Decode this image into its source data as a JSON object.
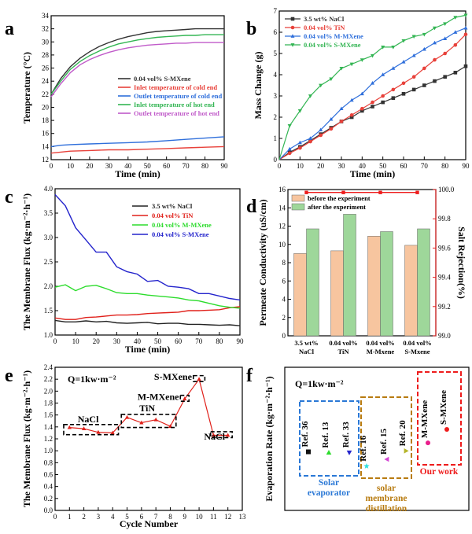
{
  "chart_data": [
    {
      "panel": "a",
      "type": "line",
      "xlabel": "Time (min)",
      "ylabel": "Temperature (°C)",
      "xlim": [
        0,
        90
      ],
      "ylim": [
        12,
        34
      ],
      "xticks": [
        0,
        10,
        20,
        30,
        40,
        50,
        60,
        70,
        80,
        90
      ],
      "yticks": [
        12,
        14,
        16,
        18,
        20,
        22,
        24,
        26,
        28,
        30,
        32,
        34
      ],
      "legend": "center-right",
      "series": [
        {
          "name": "0.04 vol% S-MXene",
          "color": "#333333",
          "x": [
            0,
            5,
            10,
            15,
            20,
            25,
            30,
            35,
            40,
            45,
            50,
            55,
            60,
            65,
            70,
            75,
            80,
            85,
            90
          ],
          "y": [
            22.0,
            24.4,
            26.2,
            27.5,
            28.5,
            29.3,
            29.9,
            30.4,
            30.8,
            31.1,
            31.4,
            31.6,
            31.7,
            31.8,
            31.9,
            32.0,
            32.0,
            32.0,
            32.0
          ]
        },
        {
          "name": "Inlet temperature of cold end",
          "color": "#e8413a",
          "x": [
            0,
            10,
            20,
            30,
            40,
            50,
            60,
            70,
            80,
            90
          ],
          "y": [
            13.0,
            13.3,
            13.4,
            13.5,
            13.5,
            13.6,
            13.7,
            13.8,
            13.9,
            14.0
          ]
        },
        {
          "name": "Outlet temperature of cold end",
          "color": "#2f6fdb",
          "x": [
            0,
            5,
            10,
            20,
            30,
            40,
            50,
            60,
            70,
            80,
            90
          ],
          "y": [
            14.0,
            14.2,
            14.3,
            14.4,
            14.5,
            14.6,
            14.7,
            14.9,
            15.1,
            15.3,
            15.5
          ]
        },
        {
          "name": "Inlet temperature of hot end",
          "color": "#33b553",
          "x": [
            0,
            5,
            10,
            15,
            20,
            25,
            30,
            35,
            40,
            45,
            50,
            55,
            60,
            65,
            70,
            75,
            80,
            85,
            90
          ],
          "y": [
            22.0,
            24.0,
            25.8,
            27.0,
            27.9,
            28.6,
            29.2,
            29.7,
            30.0,
            30.3,
            30.5,
            30.7,
            30.8,
            30.9,
            31.0,
            31.0,
            31.1,
            31.1,
            31.1
          ]
        },
        {
          "name": "Outlet temperature of hot end",
          "color": "#c05ac9",
          "x": [
            0,
            5,
            10,
            15,
            20,
            25,
            30,
            35,
            40,
            45,
            50,
            55,
            60,
            65,
            70,
            75,
            80,
            85,
            90
          ],
          "y": [
            21.6,
            23.6,
            25.3,
            26.5,
            27.3,
            27.9,
            28.4,
            28.8,
            29.1,
            29.3,
            29.5,
            29.6,
            29.7,
            29.8,
            29.8,
            29.9,
            29.9,
            29.9,
            29.9
          ]
        }
      ]
    },
    {
      "panel": "b",
      "type": "line",
      "xlabel": "Time (min)",
      "ylabel": "Mass Change (g)",
      "xlim": [
        0,
        90
      ],
      "ylim": [
        0,
        7
      ],
      "xticks": [
        0,
        10,
        20,
        30,
        40,
        50,
        60,
        70,
        80,
        90
      ],
      "yticks": [
        0,
        1,
        2,
        3,
        4,
        5,
        6,
        7
      ],
      "legend": "top-left",
      "series": [
        {
          "name": "3.5 wt%   NaCl",
          "color": "#333333",
          "marker": "square",
          "x": [
            0,
            5,
            10,
            15,
            20,
            25,
            30,
            35,
            40,
            45,
            50,
            55,
            60,
            65,
            70,
            75,
            80,
            85,
            90
          ],
          "y": [
            0,
            0.35,
            0.6,
            0.9,
            1.2,
            1.5,
            1.8,
            2.0,
            2.3,
            2.5,
            2.7,
            2.9,
            3.1,
            3.3,
            3.5,
            3.7,
            3.9,
            4.1,
            4.4
          ]
        },
        {
          "name": "0.04 vol% TiN",
          "color": "#e8413a",
          "marker": "circle",
          "x": [
            0,
            5,
            10,
            15,
            20,
            25,
            30,
            35,
            40,
            45,
            50,
            55,
            60,
            65,
            70,
            75,
            80,
            85,
            90
          ],
          "y": [
            0,
            0.3,
            0.55,
            0.85,
            1.15,
            1.45,
            1.8,
            2.1,
            2.4,
            2.7,
            3.0,
            3.3,
            3.6,
            3.9,
            4.3,
            4.7,
            5.0,
            5.4,
            5.9
          ]
        },
        {
          "name": "0.04 vol% M-MXene",
          "color": "#2f6fdb",
          "marker": "triangle-up",
          "x": [
            0,
            5,
            10,
            15,
            20,
            25,
            30,
            35,
            40,
            45,
            50,
            55,
            60,
            65,
            70,
            75,
            80,
            85,
            90
          ],
          "y": [
            0,
            0.5,
            0.8,
            1.0,
            1.4,
            1.9,
            2.4,
            2.8,
            3.1,
            3.6,
            4.0,
            4.3,
            4.6,
            4.9,
            5.2,
            5.5,
            5.7,
            6.0,
            6.2
          ]
        },
        {
          "name": "0.04 vol% S-MXene",
          "color": "#33b553",
          "marker": "triangle-down",
          "x": [
            0,
            5,
            10,
            15,
            20,
            25,
            30,
            35,
            40,
            45,
            50,
            55,
            60,
            65,
            70,
            75,
            80,
            85,
            90
          ],
          "y": [
            0,
            1.6,
            2.3,
            3.0,
            3.5,
            3.8,
            4.3,
            4.5,
            4.7,
            4.9,
            5.3,
            5.3,
            5.6,
            5.8,
            5.9,
            6.2,
            6.4,
            6.7,
            6.8
          ]
        }
      ]
    },
    {
      "panel": "c",
      "type": "line",
      "xlabel": "Time (min)",
      "ylabel": "The Membrane Flux (kg·m⁻²·h⁻¹)",
      "xlim": [
        0,
        90
      ],
      "ylim": [
        1.0,
        4.0
      ],
      "xticks": [
        0,
        10,
        20,
        30,
        40,
        50,
        60,
        70,
        80,
        90
      ],
      "yticks": [
        1.0,
        1.5,
        2.0,
        2.5,
        3.0,
        3.5,
        4.0
      ],
      "legend": "center-right",
      "series": [
        {
          "name": "3.5 wt%   NaCl",
          "color": "#222222",
          "x": [
            0,
            5,
            10,
            15,
            20,
            25,
            30,
            35,
            40,
            45,
            50,
            55,
            60,
            65,
            70,
            75,
            80,
            85,
            90
          ],
          "y": [
            1.3,
            1.27,
            1.27,
            1.29,
            1.27,
            1.28,
            1.25,
            1.24,
            1.25,
            1.26,
            1.23,
            1.24,
            1.24,
            1.22,
            1.22,
            1.21,
            1.2,
            1.21,
            1.19
          ]
        },
        {
          "name": "0.04 vol% TiN",
          "color": "#e0201a",
          "x": [
            0,
            5,
            10,
            15,
            20,
            25,
            30,
            35,
            40,
            45,
            50,
            55,
            60,
            65,
            70,
            75,
            80,
            85,
            90
          ],
          "y": [
            1.35,
            1.32,
            1.32,
            1.36,
            1.37,
            1.39,
            1.41,
            1.41,
            1.42,
            1.44,
            1.45,
            1.46,
            1.47,
            1.5,
            1.5,
            1.51,
            1.52,
            1.56,
            1.58
          ]
        },
        {
          "name": "0.04 vol% M-MXene",
          "color": "#2cdc2c",
          "x": [
            0,
            5,
            10,
            15,
            20,
            25,
            30,
            35,
            40,
            45,
            50,
            55,
            60,
            65,
            70,
            75,
            80,
            85,
            90
          ],
          "y": [
            1.98,
            2.03,
            1.91,
            2.0,
            2.02,
            1.95,
            1.87,
            1.85,
            1.85,
            1.82,
            1.8,
            1.78,
            1.76,
            1.72,
            1.7,
            1.65,
            1.6,
            1.57,
            1.55
          ]
        },
        {
          "name": "0.04 vol% S-MXene",
          "color": "#2424cc",
          "x": [
            0,
            5,
            10,
            15,
            20,
            25,
            30,
            35,
            40,
            45,
            50,
            55,
            60,
            65,
            70,
            75,
            80,
            85,
            90
          ],
          "y": [
            3.88,
            3.65,
            3.2,
            2.95,
            2.7,
            2.7,
            2.4,
            2.3,
            2.25,
            2.1,
            2.12,
            2.0,
            1.98,
            1.95,
            1.85,
            1.85,
            1.8,
            1.75,
            1.72
          ]
        }
      ]
    },
    {
      "panel": "d",
      "type": "bar",
      "categories": [
        "3.5 wt%|NaCl",
        "0.04 vol%|TiN",
        "0.04 vol%|M-Mxene",
        "0.04 vol%|S-Mxene"
      ],
      "ylabel": "Permeate Conductivity (uS/cm)",
      "y2label": "Salt Rejection(%)",
      "ylim": [
        0,
        16
      ],
      "yticks": [
        0,
        2,
        4,
        6,
        8,
        10,
        12,
        14,
        16
      ],
      "y2lim": [
        99.0,
        100.0
      ],
      "y2ticks": [
        99.0,
        99.2,
        99.4,
        99.6,
        99.8,
        100.0
      ],
      "legend": "top-left",
      "series": [
        {
          "name": "before the experiment",
          "color": "#f7c59f",
          "values": [
            9.0,
            9.3,
            10.9,
            9.9
          ]
        },
        {
          "name": "after the experiment",
          "color": "#9ed79a",
          "values": [
            11.7,
            13.3,
            11.4,
            11.7
          ]
        }
      ],
      "line": {
        "color": "#ee1c1c",
        "axis": "right",
        "values": [
          99.98,
          99.98,
          99.98,
          99.98
        ]
      }
    },
    {
      "panel": "e",
      "type": "line",
      "xlabel": "Cycle Number",
      "ylabel": "The Membrane Flux (kg·m⁻²·h⁻¹)",
      "xlim": [
        0,
        13
      ],
      "ylim": [
        0,
        2.4
      ],
      "xticks": [
        0,
        1,
        2,
        3,
        4,
        5,
        6,
        7,
        8,
        9,
        10,
        11,
        12,
        13
      ],
      "yticks": [
        0,
        0.2,
        0.4,
        0.6,
        0.8,
        1.0,
        1.2,
        1.4,
        1.6,
        1.8,
        2.0,
        2.2,
        2.4
      ],
      "note": "Q=1kw·m⁻²",
      "series": [
        {
          "color": "#e0201a",
          "marker": "triangle-up",
          "x": [
            1,
            2,
            3,
            4,
            5,
            6,
            7,
            8,
            9,
            10,
            11,
            12
          ],
          "y": [
            1.39,
            1.37,
            1.31,
            1.3,
            1.56,
            1.47,
            1.52,
            1.41,
            1.87,
            2.2,
            1.26,
            1.26
          ]
        }
      ],
      "annotations": [
        "NaCl",
        "TiN",
        "M-MXene",
        "S-MXene",
        "NaCl"
      ]
    },
    {
      "panel": "f",
      "type": "scatter",
      "ylabel": "Evaporation Rate (kg·m⁻²·h⁻¹)",
      "note": "Q=1kw·m⁻²",
      "points": [
        {
          "label": "Ref. 36",
          "color": "#111111",
          "marker": "square",
          "value": 1.25
        },
        {
          "label": "Ref. 13",
          "color": "#2cdc2c",
          "marker": "triangle-up",
          "value": 1.22
        },
        {
          "label": "Ref. 33",
          "color": "#2424cc",
          "marker": "triangle-down",
          "value": 1.23
        },
        {
          "label": "Ref. 16",
          "color": "#2ee0e0",
          "marker": "star",
          "value": 0.77
        },
        {
          "label": "Ref. 15",
          "color": "#d447d4",
          "marker": "triangle-left",
          "value": 1.0
        },
        {
          "label": "Ref. 20",
          "color": "#b5b52a",
          "marker": "triangle-right",
          "value": 1.28
        },
        {
          "label": "M-MXene",
          "color": "#e91e8c",
          "marker": "circle",
          "value": 1.55
        },
        {
          "label": "S-MXene",
          "color": "#ee1c1c",
          "marker": "circle",
          "value": 2.0
        }
      ],
      "groups": [
        {
          "label": "Solar|evaporator",
          "color": "#2a78d6"
        },
        {
          "label": "solar|membrane|distillation",
          "color": "#b87b10"
        },
        {
          "label": "Our work",
          "color": "#ee1c1c"
        }
      ]
    }
  ]
}
